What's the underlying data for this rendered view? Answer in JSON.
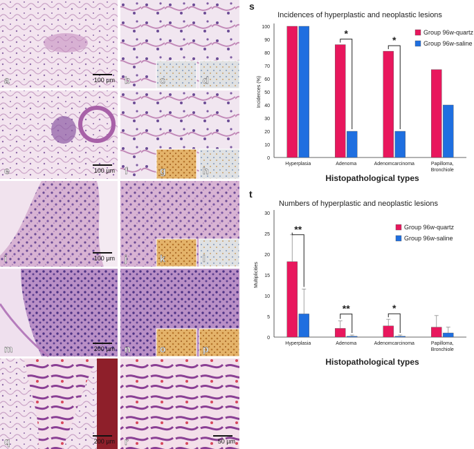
{
  "micrograph_panels": [
    {
      "label": "a",
      "scale": "100 µm"
    },
    {
      "label": "b",
      "scale": ""
    },
    {
      "label": "c",
      "scale": ""
    },
    {
      "label": "d",
      "scale": ""
    },
    {
      "label": "e",
      "scale": "100 µm"
    },
    {
      "label": "f",
      "scale": ""
    },
    {
      "label": "g",
      "scale": ""
    },
    {
      "label": "h",
      "scale": ""
    },
    {
      "label": "i",
      "scale": "100 µm"
    },
    {
      "label": "j",
      "scale": ""
    },
    {
      "label": "k",
      "scale": ""
    },
    {
      "label": "l",
      "scale": ""
    },
    {
      "label": "m",
      "scale": "200 µm"
    },
    {
      "label": "n",
      "scale": ""
    },
    {
      "label": "o",
      "scale": ""
    },
    {
      "label": "p",
      "scale": ""
    },
    {
      "label": "q",
      "scale": "200 µm"
    },
    {
      "label": "r",
      "scale": "50 µm"
    }
  ],
  "chart_data": [
    {
      "panel_label": "s",
      "type": "bar",
      "title": "Incidences of hyperplastic and neoplastic lesions",
      "xlabel": "Histopathological types",
      "ylabel": "Incidences (%)",
      "ylim": [
        0,
        100
      ],
      "yticks": [
        0,
        10,
        20,
        30,
        40,
        50,
        60,
        70,
        80,
        90,
        100
      ],
      "grid": false,
      "legend_position": "top-right",
      "categories": [
        "Hyperplasia",
        "Adenoma",
        "Adenomcarcinoma",
        "Papilloma, Bronchiole"
      ],
      "category_lines": [
        [
          "Hyperplasia"
        ],
        [
          "Adenoma"
        ],
        [
          "Adenomcarcinoma"
        ],
        [
          "Papilloma,",
          "Bronchiole"
        ]
      ],
      "series": [
        {
          "name": "Group 96w-quartz",
          "color": "#e8175d",
          "values": [
            100,
            86,
            81,
            67
          ]
        },
        {
          "name": "Group 96w-saline",
          "color": "#1f6fe0",
          "values": [
            100,
            20,
            20,
            40
          ]
        }
      ],
      "significance": [
        {
          "category": "Adenoma",
          "label": "*"
        },
        {
          "category": "Adenomcarcinoma",
          "label": "*"
        }
      ]
    },
    {
      "panel_label": "t",
      "type": "bar",
      "title": "Numbers of hyperplastic and neoplastic lesions",
      "xlabel": "Histopathological types",
      "ylabel": "Multiplicities",
      "ylim": [
        0,
        30
      ],
      "yticks": [
        0,
        5,
        10,
        15,
        20,
        25,
        30
      ],
      "grid": false,
      "legend_position": "top-right",
      "categories": [
        "Hyperplasia",
        "Adenoma",
        "Adenomcarcinoma",
        "Papilloma, Bronchiole"
      ],
      "category_lines": [
        [
          "Hyperplasia"
        ],
        [
          "Adenoma"
        ],
        [
          "Adenomcarcinoma"
        ],
        [
          "Papilloma,",
          "Bronchiole"
        ]
      ],
      "series": [
        {
          "name": "Group 96w-quartz",
          "color": "#e8175d",
          "values": [
            18.2,
            2.1,
            2.7,
            2.4
          ],
          "errors": [
            6.5,
            1.8,
            1.6,
            2.8
          ]
        },
        {
          "name": "Group 96w-saline",
          "color": "#1f6fe0",
          "values": [
            5.6,
            0.2,
            0.2,
            1.0
          ],
          "errors": [
            6.0,
            0.3,
            0.3,
            1.4
          ]
        }
      ],
      "significance": [
        {
          "category": "Hyperplasia",
          "label": "**"
        },
        {
          "category": "Adenoma",
          "label": "**"
        },
        {
          "category": "Adenomcarcinoma",
          "label": "*"
        }
      ]
    }
  ]
}
